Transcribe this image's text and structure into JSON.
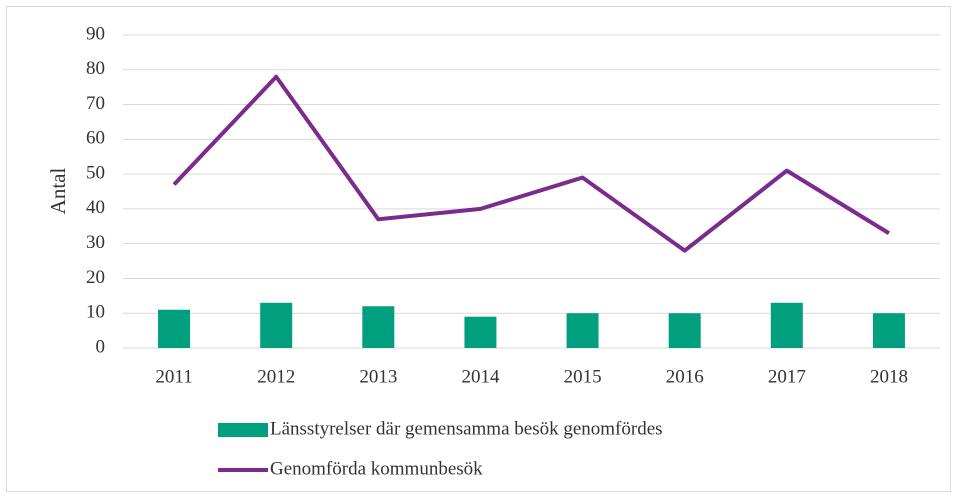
{
  "chart_data": {
    "type": "combo",
    "y_label": "Antal",
    "categories": [
      "2011",
      "2012",
      "2013",
      "2014",
      "2015",
      "2016",
      "2017",
      "2018"
    ],
    "series": [
      {
        "name": "Länsstyrelser där gemensamma besök genomfördes",
        "type": "bar",
        "color": "#00a07f",
        "values": [
          11,
          13,
          12,
          9,
          10,
          10,
          13,
          10
        ]
      },
      {
        "name": "Genomförda kommunbesök",
        "type": "line",
        "color": "#7a2c8c",
        "values": [
          47,
          78,
          37,
          40,
          49,
          28,
          51,
          33
        ]
      }
    ],
    "ylim": [
      0,
      90
    ],
    "yticks": [
      0,
      10,
      20,
      30,
      40,
      50,
      60,
      70,
      80,
      90
    ],
    "grid": true,
    "legend": "bottom"
  }
}
